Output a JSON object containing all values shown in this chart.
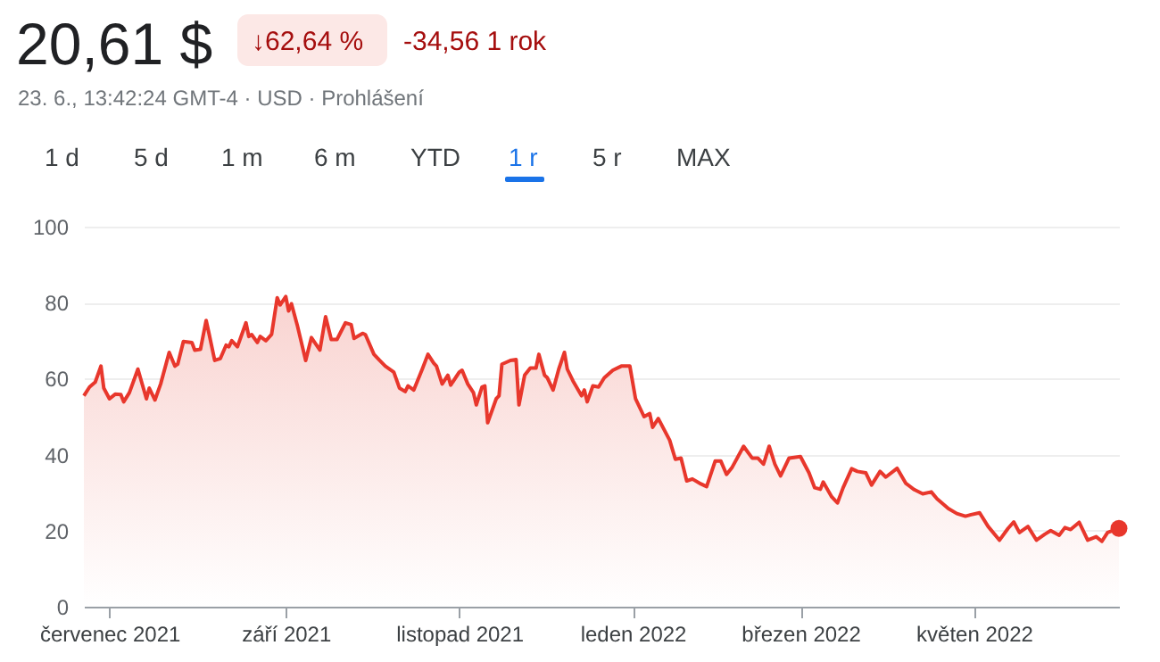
{
  "chart_data": {
    "type": "area",
    "title": "20,61 $",
    "subtitle": "23. 6., 13:42:24 GMT-4 · USD · Prohlášení",
    "annotations": [
      "↓62,64 %",
      "-34,56 1 rok",
      "1 d",
      "5 d",
      "1 m",
      "6 m",
      "YTD",
      "1 r",
      "5 r",
      "MAX"
    ],
    "x": [
      "2021-06-22",
      "2021-06-24",
      "2021-06-26",
      "2021-06-28",
      "2021-06-29",
      "2021-07-01",
      "2021-07-03",
      "2021-07-05",
      "2021-07-06",
      "2021-07-08",
      "2021-07-11",
      "2021-07-14",
      "2021-07-15",
      "2021-07-17",
      "2021-07-19",
      "2021-07-22",
      "2021-07-24",
      "2021-07-25",
      "2021-07-27",
      "2021-07-30",
      "2021-07-31",
      "2021-08-02",
      "2021-08-04",
      "2021-08-05",
      "2021-08-07",
      "2021-08-09",
      "2021-08-11",
      "2021-08-12",
      "2021-08-13",
      "2021-08-15",
      "2021-08-18",
      "2021-08-19",
      "2021-08-20",
      "2021-08-22",
      "2021-08-23",
      "2021-08-25",
      "2021-08-27",
      "2021-08-29",
      "2021-08-30",
      "2021-09-01",
      "2021-09-02",
      "2021-09-03",
      "2021-09-05",
      "2021-09-08",
      "2021-09-10",
      "2021-09-13",
      "2021-09-15",
      "2021-09-17",
      "2021-09-19",
      "2021-09-22",
      "2021-09-24",
      "2021-09-25",
      "2021-09-28",
      "2021-09-29",
      "2021-10-02",
      "2021-10-04",
      "2021-10-06",
      "2021-10-09",
      "2021-10-11",
      "2021-10-13",
      "2021-10-14",
      "2021-10-16",
      "2021-10-19",
      "2021-10-21",
      "2021-10-23",
      "2021-10-24",
      "2021-10-26",
      "2021-10-28",
      "2021-10-29",
      "2021-11-01",
      "2021-11-02",
      "2021-11-04",
      "2021-11-06",
      "2021-11-07",
      "2021-11-09",
      "2021-11-10",
      "2021-11-11",
      "2021-11-14",
      "2021-11-15",
      "2021-11-16",
      "2021-11-19",
      "2021-11-21",
      "2021-11-22",
      "2021-11-24",
      "2021-11-26",
      "2021-11-28",
      "2021-11-29",
      "2021-12-01",
      "2021-12-02",
      "2021-12-04",
      "2021-12-06",
      "2021-12-08",
      "2021-12-09",
      "2021-12-11",
      "2021-12-14",
      "2021-12-15",
      "2021-12-16",
      "2021-12-18",
      "2021-12-20",
      "2021-12-22",
      "2021-12-25",
      "2021-12-28",
      "2021-12-31",
      "2022-01-02",
      "2022-01-05",
      "2022-01-07",
      "2022-01-08",
      "2022-01-10",
      "2022-01-14",
      "2022-01-16",
      "2022-01-18",
      "2022-01-20",
      "2022-01-22",
      "2022-01-25",
      "2022-01-27",
      "2022-01-30",
      "2022-02-01",
      "2022-02-03",
      "2022-02-05",
      "2022-02-09",
      "2022-02-12",
      "2022-02-14",
      "2022-02-16",
      "2022-02-18",
      "2022-02-20",
      "2022-02-22",
      "2022-02-25",
      "2022-03-01",
      "2022-03-04",
      "2022-03-06",
      "2022-03-08",
      "2022-03-09",
      "2022-03-12",
      "2022-03-14",
      "2022-03-16",
      "2022-03-19",
      "2022-03-21",
      "2022-03-24",
      "2022-03-26",
      "2022-03-29",
      "2022-03-31",
      "2022-04-04",
      "2022-04-07",
      "2022-04-10",
      "2022-04-13",
      "2022-04-16",
      "2022-04-18",
      "2022-04-22",
      "2022-04-25",
      "2022-04-28",
      "2022-04-30",
      "2022-05-03",
      "2022-05-06",
      "2022-05-10",
      "2022-05-13",
      "2022-05-15",
      "2022-05-17",
      "2022-05-20",
      "2022-05-23",
      "2022-05-26",
      "2022-05-28",
      "2022-05-31",
      "2022-06-02",
      "2022-06-04",
      "2022-06-07",
      "2022-06-10",
      "2022-06-13",
      "2022-06-15",
      "2022-06-17",
      "2022-06-21"
    ],
    "series": [
      {
        "type": "area",
        "color": "#e8372c",
        "values": [
          55.5,
          57.8,
          59.1,
          63.3,
          57.5,
          54.7,
          55.9,
          55.8,
          53.9,
          56.3,
          62.5,
          54.7,
          57.5,
          54.4,
          58.6,
          66.9,
          63.3,
          63.8,
          69.8,
          69.5,
          67.5,
          67.7,
          75.3,
          71.9,
          64.8,
          65.3,
          68.8,
          68.4,
          70,
          68.4,
          74.7,
          71.1,
          71.6,
          69.5,
          71.1,
          70,
          71.6,
          81.3,
          79.4,
          81.6,
          77.8,
          79.7,
          74.2,
          64.8,
          70.8,
          67.5,
          76.3,
          70.3,
          70.3,
          74.7,
          74.2,
          70.6,
          71.9,
          71.6,
          66.4,
          64.8,
          63.3,
          61.7,
          57.5,
          56.6,
          58.1,
          57,
          62.5,
          66.4,
          64.1,
          63.3,
          58.6,
          60.9,
          58.3,
          61.7,
          62.2,
          58.6,
          56.3,
          53.1,
          57.8,
          58.1,
          48.4,
          54.7,
          55.5,
          63.8,
          64.8,
          65,
          53.1,
          60.9,
          62.8,
          62.8,
          66.4,
          60.9,
          60.2,
          57,
          62.5,
          66.9,
          62.5,
          59.4,
          55.5,
          57,
          53.9,
          58.1,
          57.8,
          60.2,
          62.2,
          63.3,
          63.3,
          54.7,
          50,
          50.8,
          47.2,
          49.5,
          43.8,
          38.8,
          39.1,
          33.1,
          33.6,
          32.3,
          31.6,
          38.3,
          38.3,
          34.8,
          36.7,
          42.2,
          39.1,
          39.1,
          37.5,
          42.2,
          37.5,
          34.4,
          39.1,
          39.5,
          35.2,
          31.3,
          30.9,
          32.8,
          28.9,
          27.3,
          31.3,
          36.3,
          35.6,
          35.2,
          32,
          35.6,
          34.1,
          36.4,
          32.5,
          30.8,
          29.7,
          30.2,
          28.4,
          25.8,
          24.5,
          23.8,
          24.2,
          24.7,
          21.1,
          17.5,
          20.6,
          22.3,
          19.5,
          21.1,
          17.5,
          19.1,
          20,
          18.8,
          20.8,
          20.3,
          22.2,
          17.5,
          18.4,
          17.2,
          19.5,
          20.61
        ]
      },
      {
        "type": "scatter",
        "color": "#e8372c",
        "x": [
          "2022-06-21"
        ],
        "values": [
          20.61
        ]
      }
    ],
    "xlim": [
      "2021-06-22",
      "2022-06-21"
    ],
    "xticks": [
      {
        "value": "2021-07-01",
        "label": "červenec 2021"
      },
      {
        "value": "2021-09-01",
        "label": "září 2021"
      },
      {
        "value": "2021-11-01",
        "label": "listopad 2021"
      },
      {
        "value": "2022-01-01",
        "label": "leden 2022"
      },
      {
        "value": "2022-03-01",
        "label": "březen 2022"
      },
      {
        "value": "2022-05-01",
        "label": "květen 2022"
      }
    ],
    "ylim": [
      0,
      100
    ],
    "yticks": [
      0,
      20,
      40,
      60,
      80,
      100
    ],
    "grid": "y"
  }
}
